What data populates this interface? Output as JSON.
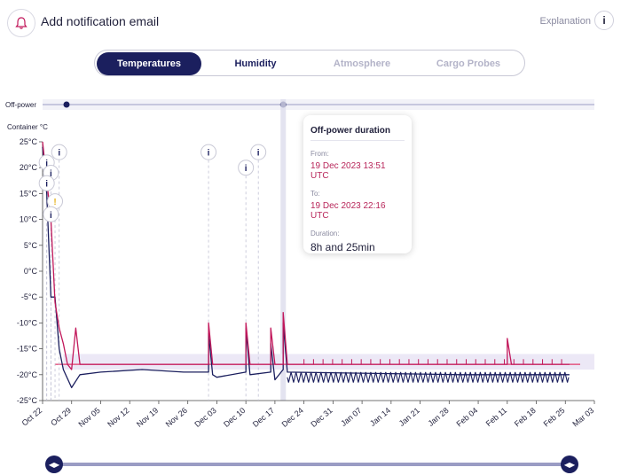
{
  "header": {
    "title": "Add notification email",
    "explanation": "Explanation",
    "info_glyph": "i",
    "bell_icon": "bell-icon"
  },
  "tabs": [
    {
      "label": "Temperatures",
      "state": "active"
    },
    {
      "label": "Humidity",
      "state": "normal"
    },
    {
      "label": "Atmosphere",
      "state": "disabled"
    },
    {
      "label": "Cargo Probes",
      "state": "disabled"
    }
  ],
  "off_power": {
    "label": "Off-power"
  },
  "tooltip": {
    "title": "Off-power duration",
    "from_label": "From:",
    "from_value": "19 Dec 2023 13:51 UTC",
    "to_label": "To:",
    "to_value": "19 Dec 2023 22:16 UTC",
    "duration_label": "Duration:",
    "duration_value": "8h and 25min"
  },
  "colors": {
    "navy": "#1b1f5e",
    "magenta": "#c2185b",
    "setpoint": "#e23a6c",
    "band": "#ece8f6",
    "warning": "#e6b422"
  },
  "chart_data": {
    "type": "line",
    "ylabel": "Container °C",
    "ylim": [
      -25,
      25
    ],
    "y_ticks": [
      "25°C",
      "20°C",
      "15°C",
      "10°C",
      "5°C",
      "0°C",
      "-5°C",
      "-10°C",
      "-15°C",
      "-20°C",
      "-25°C"
    ],
    "x_start": "2023-10-22",
    "x_end": "2024-03-03",
    "x_ticks": [
      "Oct 22",
      "Oct 29",
      "Nov 05",
      "Nov 12",
      "Nov 19",
      "Nov 26",
      "Dec 03",
      "Dec 10",
      "Dec 17",
      "Dec 24",
      "Dec 31",
      "Jan 07",
      "Jan 14",
      "Jan 21",
      "Jan 28",
      "Feb 04",
      "Feb 11",
      "Feb 18",
      "Feb 25",
      "Mar 03"
    ],
    "series": [
      {
        "color": "#1b1f5e",
        "points": [
          [
            "2023-10-22",
            24
          ],
          [
            "2023-10-23",
            15
          ],
          [
            "2023-10-24",
            -5
          ],
          [
            "2023-10-25",
            -5
          ],
          [
            "2023-10-26",
            -15
          ],
          [
            "2023-10-27",
            -19
          ],
          [
            "2023-10-29",
            -22.5
          ],
          [
            "2023-10-31",
            -20
          ],
          [
            "2023-11-05",
            -19.5
          ],
          [
            "2023-11-15",
            -19
          ],
          [
            "2023-11-25",
            -19.5
          ],
          [
            "2023-12-01",
            -19.5
          ],
          [
            "2023-12-01",
            -12
          ],
          [
            "2023-12-02",
            -20
          ],
          [
            "2023-12-03",
            -20.5
          ],
          [
            "2023-12-10",
            -19.5
          ],
          [
            "2023-12-10",
            -11
          ],
          [
            "2023-12-11",
            -20
          ],
          [
            "2023-12-16",
            -19.5
          ],
          [
            "2023-12-16",
            -14
          ],
          [
            "2023-12-17",
            -21
          ],
          [
            "2023-12-19",
            -19
          ],
          [
            "2023-12-19",
            -10
          ],
          [
            "2023-12-20",
            -19.5
          ],
          [
            "2024-01-31",
            -20
          ],
          [
            "2024-02-26",
            -20
          ]
        ],
        "oscillation": {
          "from": "2023-12-20",
          "to": "2024-02-26",
          "low": -21.5,
          "high": -19.5,
          "period_days": 1.2
        }
      },
      {
        "color": "#c2185b",
        "points": [
          [
            "2023-10-22",
            25
          ],
          [
            "2023-10-24",
            10
          ],
          [
            "2023-10-25",
            -6
          ],
          [
            "2023-10-26",
            -11
          ],
          [
            "2023-10-27",
            -14
          ],
          [
            "2023-10-28",
            -18
          ],
          [
            "2023-10-29",
            -19
          ],
          [
            "2023-10-30",
            -11
          ],
          [
            "2023-10-31",
            -18
          ],
          [
            "2023-12-01",
            -18
          ],
          [
            "2023-12-01",
            -10
          ],
          [
            "2023-12-02",
            -18
          ],
          [
            "2023-12-10",
            -18
          ],
          [
            "2023-12-10",
            -10
          ],
          [
            "2023-12-11",
            -18
          ],
          [
            "2023-12-16",
            -18
          ],
          [
            "2023-12-16",
            -11
          ],
          [
            "2023-12-17",
            -18
          ],
          [
            "2023-12-19",
            -18
          ],
          [
            "2023-12-19",
            -8
          ],
          [
            "2023-12-20",
            -18
          ],
          [
            "2024-02-11",
            -18
          ],
          [
            "2024-02-11",
            -13
          ],
          [
            "2024-02-12",
            -18
          ],
          [
            "2024-02-26",
            -18
          ]
        ]
      }
    ],
    "setpoint": -18,
    "band": [
      -19,
      -16
    ],
    "events": [
      {
        "date": "2023-10-23",
        "y": 21,
        "type": "info",
        "glyph": "i"
      },
      {
        "date": "2023-10-24",
        "y": 19,
        "type": "info",
        "glyph": "i"
      },
      {
        "date": "2023-10-23",
        "y": 17,
        "type": "info",
        "glyph": "i"
      },
      {
        "date": "2023-10-25",
        "y": 13.5,
        "type": "warning",
        "glyph": "!"
      },
      {
        "date": "2023-10-24",
        "y": 11,
        "type": "info",
        "glyph": "i"
      },
      {
        "date": "2023-10-26",
        "y": 23,
        "type": "info",
        "glyph": "i"
      },
      {
        "date": "2023-12-01",
        "y": 23,
        "type": "info",
        "glyph": "i"
      },
      {
        "date": "2023-12-10",
        "y": 20,
        "type": "info",
        "glyph": "i"
      },
      {
        "date": "2023-12-13",
        "y": 23,
        "type": "info",
        "glyph": "i"
      }
    ],
    "off_power_markers": [
      "2023-10-22",
      "2023-12-19"
    ]
  }
}
